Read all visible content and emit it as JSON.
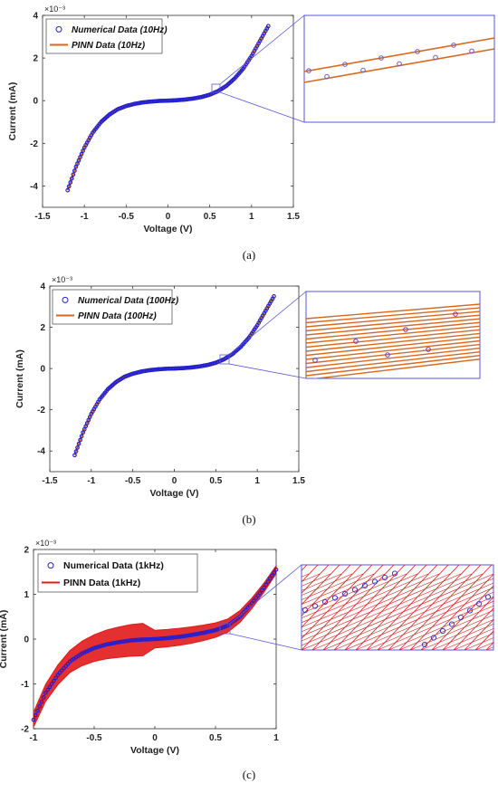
{
  "chart_data": [
    {
      "type": "line",
      "panel": "a",
      "caption": "(a)",
      "xlabel": "Voltage (V)",
      "ylabel": "Current (mA)",
      "y_exponent_label": "×10⁻³",
      "xlim": [
        -1.5,
        1.5
      ],
      "ylim": [
        -5,
        4
      ],
      "xticks": [
        "-1.5",
        "-1",
        "-0.5",
        "0",
        "0.5",
        "1",
        "1.5"
      ],
      "yticks": [
        "4",
        "2",
        "0",
        "-2",
        "-4"
      ],
      "legend_position": "top-left",
      "series": [
        {
          "name": "Numerical Data (10Hz)",
          "marker": "circle",
          "color": "#1f1fd6",
          "x": [
            -1.2,
            -1.1,
            -1.0,
            -0.9,
            -0.8,
            -0.7,
            -0.6,
            -0.5,
            -0.4,
            -0.3,
            -0.2,
            -0.1,
            0.0,
            0.1,
            0.2,
            0.3,
            0.4,
            0.5,
            0.6,
            0.7,
            0.8,
            0.9,
            1.0,
            1.1,
            1.2
          ],
          "y": [
            -4.2,
            -3.1,
            -2.2,
            -1.5,
            -1.0,
            -0.65,
            -0.4,
            -0.25,
            -0.15,
            -0.08,
            -0.04,
            -0.01,
            0.0,
            0.02,
            0.05,
            0.1,
            0.17,
            0.28,
            0.45,
            0.7,
            1.05,
            1.5,
            2.1,
            2.8,
            3.5
          ]
        },
        {
          "name": "PINN Data (10Hz)",
          "marker": "line",
          "color": "#d9681e",
          "x": [
            -1.2,
            -1.1,
            -1.0,
            -0.9,
            -0.8,
            -0.7,
            -0.6,
            -0.5,
            -0.4,
            -0.3,
            -0.2,
            -0.1,
            0.0,
            0.1,
            0.2,
            0.3,
            0.4,
            0.5,
            0.6,
            0.7,
            0.8,
            0.9,
            1.0,
            1.1,
            1.2
          ],
          "y": [
            -4.2,
            -3.1,
            -2.2,
            -1.5,
            -1.0,
            -0.65,
            -0.4,
            -0.25,
            -0.15,
            -0.08,
            -0.04,
            -0.01,
            0.0,
            0.02,
            0.05,
            0.1,
            0.17,
            0.28,
            0.45,
            0.7,
            1.05,
            1.5,
            2.1,
            2.8,
            3.5
          ]
        }
      ],
      "zoom_inset": "lines"
    },
    {
      "type": "line",
      "panel": "b",
      "caption": "(b)",
      "xlabel": "Voltage (V)",
      "ylabel": "Current (mA)",
      "y_exponent_label": "×10⁻³",
      "xlim": [
        -1.5,
        1.5
      ],
      "ylim": [
        -5,
        4
      ],
      "xticks": [
        "-1.5",
        "-1",
        "-0.5",
        "0",
        "0.5",
        "1",
        "1.5"
      ],
      "yticks": [
        "4",
        "2",
        "0",
        "-2",
        "-4"
      ],
      "legend_position": "top-left",
      "series": [
        {
          "name": "Numerical Data (100Hz)",
          "marker": "circle",
          "color": "#1f1fd6",
          "x": [
            -1.2,
            -1.1,
            -1.0,
            -0.9,
            -0.8,
            -0.7,
            -0.6,
            -0.5,
            -0.4,
            -0.3,
            -0.2,
            -0.1,
            0.0,
            0.1,
            0.2,
            0.3,
            0.4,
            0.5,
            0.6,
            0.7,
            0.8,
            0.9,
            1.0,
            1.1,
            1.2
          ],
          "y": [
            -4.2,
            -3.1,
            -2.2,
            -1.5,
            -1.0,
            -0.65,
            -0.4,
            -0.25,
            -0.15,
            -0.08,
            -0.04,
            -0.01,
            0.0,
            0.02,
            0.05,
            0.1,
            0.17,
            0.28,
            0.45,
            0.7,
            1.05,
            1.5,
            2.1,
            2.8,
            3.5
          ]
        },
        {
          "name": "PINN Data (100Hz)",
          "marker": "line",
          "color": "#d9681e",
          "x": [
            -1.2,
            -1.1,
            -1.0,
            -0.9,
            -0.8,
            -0.7,
            -0.6,
            -0.5,
            -0.4,
            -0.3,
            -0.2,
            -0.1,
            0.0,
            0.1,
            0.2,
            0.3,
            0.4,
            0.5,
            0.6,
            0.7,
            0.8,
            0.9,
            1.0,
            1.1,
            1.2
          ],
          "y": [
            -4.2,
            -3.1,
            -2.2,
            -1.5,
            -1.0,
            -0.65,
            -0.4,
            -0.25,
            -0.15,
            -0.08,
            -0.04,
            -0.01,
            0.0,
            0.02,
            0.05,
            0.1,
            0.17,
            0.28,
            0.45,
            0.7,
            1.05,
            1.5,
            2.1,
            2.8,
            3.5
          ]
        }
      ],
      "zoom_inset": "many-lines"
    },
    {
      "type": "line",
      "panel": "c",
      "caption": "(c)",
      "xlabel": "Voltage (V)",
      "ylabel": "Current (mA)",
      "y_exponent_label": "×10⁻³",
      "xlim": [
        -1,
        1
      ],
      "ylim": [
        -2,
        2
      ],
      "xticks": [
        "-1",
        "-0.5",
        "0",
        "0.5",
        "1"
      ],
      "yticks": [
        "2",
        "1",
        "0",
        "-1",
        "-2"
      ],
      "legend_position": "top-left",
      "series": [
        {
          "name": "Numerical Data (1kHz)",
          "marker": "circle",
          "color": "#1f1fd6",
          "x": [
            -1.0,
            -0.9,
            -0.8,
            -0.7,
            -0.6,
            -0.5,
            -0.4,
            -0.3,
            -0.2,
            -0.1,
            0.0,
            0.1,
            0.2,
            0.3,
            0.4,
            0.5,
            0.6,
            0.7,
            0.8,
            0.9,
            1.0
          ],
          "y": [
            -1.8,
            -1.2,
            -0.8,
            -0.5,
            -0.32,
            -0.2,
            -0.12,
            -0.07,
            -0.03,
            -0.01,
            0.0,
            0.02,
            0.05,
            0.09,
            0.14,
            0.2,
            0.3,
            0.5,
            0.8,
            1.15,
            1.55
          ]
        },
        {
          "name": "PINN Data (1kHz)",
          "marker": "line",
          "color": "#e11a1a",
          "x": [
            -1.0,
            -0.9,
            -0.8,
            -0.7,
            -0.6,
            -0.5,
            -0.4,
            -0.3,
            -0.2,
            -0.1,
            0.0,
            0.1,
            0.2,
            0.3,
            0.4,
            0.5,
            0.6,
            0.7,
            0.8,
            0.9,
            1.0
          ],
          "y": [
            -1.8,
            -1.2,
            -0.8,
            -0.5,
            -0.32,
            -0.2,
            -0.12,
            -0.07,
            -0.03,
            -0.01,
            0.0,
            0.02,
            0.05,
            0.09,
            0.14,
            0.2,
            0.3,
            0.5,
            0.8,
            1.15,
            1.55
          ]
        }
      ],
      "zoom_inset": "hatch"
    }
  ]
}
